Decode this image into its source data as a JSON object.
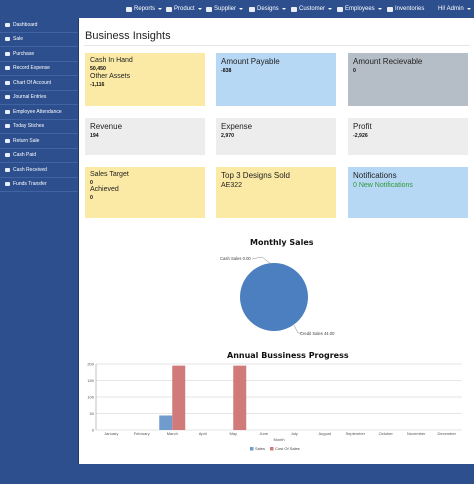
{
  "nav": {
    "items": [
      {
        "label": "Reports",
        "icon": "chart-icon"
      },
      {
        "label": "Product",
        "icon": "cart-icon"
      },
      {
        "label": "Supplier",
        "icon": "truck-icon"
      },
      {
        "label": "Designs",
        "icon": "user-icon"
      },
      {
        "label": "Customer",
        "icon": "user-icon"
      },
      {
        "label": "Employees",
        "icon": "users-icon"
      },
      {
        "label": "Inventories",
        "icon": "table-icon"
      }
    ],
    "user_label": "Hi! Admin"
  },
  "sidebar": {
    "items": [
      {
        "label": "Dashboard",
        "icon": "dashboard-icon"
      },
      {
        "label": "Sale",
        "icon": "sale-icon"
      },
      {
        "label": "Purchase",
        "icon": "purchase-icon"
      },
      {
        "label": "Record Expense",
        "icon": "expense-icon"
      },
      {
        "label": "Chart Of Account",
        "icon": "accounts-icon"
      },
      {
        "label": "Journal Entries",
        "icon": "journal-icon"
      },
      {
        "label": "Employee Attendance",
        "icon": "attendance-icon"
      },
      {
        "label": "Today Stiches",
        "icon": "stitch-icon"
      },
      {
        "label": "Return Sale",
        "icon": "return-icon"
      },
      {
        "label": "Cash Paid",
        "icon": "cash-paid-icon"
      },
      {
        "label": "Cash Received",
        "icon": "cash-received-icon"
      },
      {
        "label": "Funds Transfer",
        "icon": "transfer-icon"
      }
    ]
  },
  "main": {
    "title": "Business Insights",
    "cards": {
      "cash_in_hand": {
        "label": "Cash In Hand",
        "value": "50,450",
        "label2": "Other Assets",
        "value2": "-1,116"
      },
      "amount_payable": {
        "label": "Amount Payable",
        "value": "-838"
      },
      "amount_recievable": {
        "label": "Amount Recievable",
        "value": "0"
      },
      "revenue": {
        "label": "Revenue",
        "value": "194"
      },
      "expense": {
        "label": "Expense",
        "value": "2,970"
      },
      "profit": {
        "label": "Profit",
        "value": "-2,926"
      },
      "sales_target": {
        "label": "Sales Target",
        "value": "0",
        "label2": "Achieved",
        "value2": "0"
      },
      "top_designs": {
        "label": "Top 3 Designs Sold",
        "value": "AE322"
      },
      "notifications": {
        "label": "Notifications",
        "value": "0 New Notifications"
      }
    }
  },
  "colors": {
    "brand": "#2d4f8e",
    "card_yellow": "#fbeaa5",
    "card_blue": "#b7d8f5",
    "card_grey": "#b5bec7",
    "card_light": "#ededed",
    "notification_green": "#2f9a3a",
    "series_sales": "#6f9ccd",
    "series_cost": "#d07a7a",
    "pie": "#4b7fbf"
  },
  "chart_data": [
    {
      "type": "pie",
      "title": "Monthly Sales",
      "slices": [
        {
          "label": "Cash Sales",
          "value": 0.0,
          "display": "Cash Sales 0.00"
        },
        {
          "label": "Credit Sales",
          "value": 44.0,
          "display": "Credit Sales 44.00"
        }
      ]
    },
    {
      "type": "bar",
      "title": "Annual Bussiness Progress",
      "xlabel": "Month",
      "ylabel": "",
      "ylim": [
        0,
        200
      ],
      "yticks": [
        0,
        50,
        100,
        150,
        200
      ],
      "categories": [
        "January",
        "February",
        "March",
        "April",
        "May",
        "June",
        "July",
        "August",
        "September",
        "October",
        "November",
        "December"
      ],
      "series": [
        {
          "name": "Sales",
          "values": [
            0,
            0,
            44,
            0,
            0,
            0,
            0,
            0,
            0,
            0,
            0,
            0
          ]
        },
        {
          "name": "Cost Of Sales",
          "values": [
            0,
            0,
            195,
            0,
            195,
            0,
            0,
            0,
            0,
            0,
            0,
            0
          ]
        }
      ],
      "legend": "bottom"
    }
  ]
}
